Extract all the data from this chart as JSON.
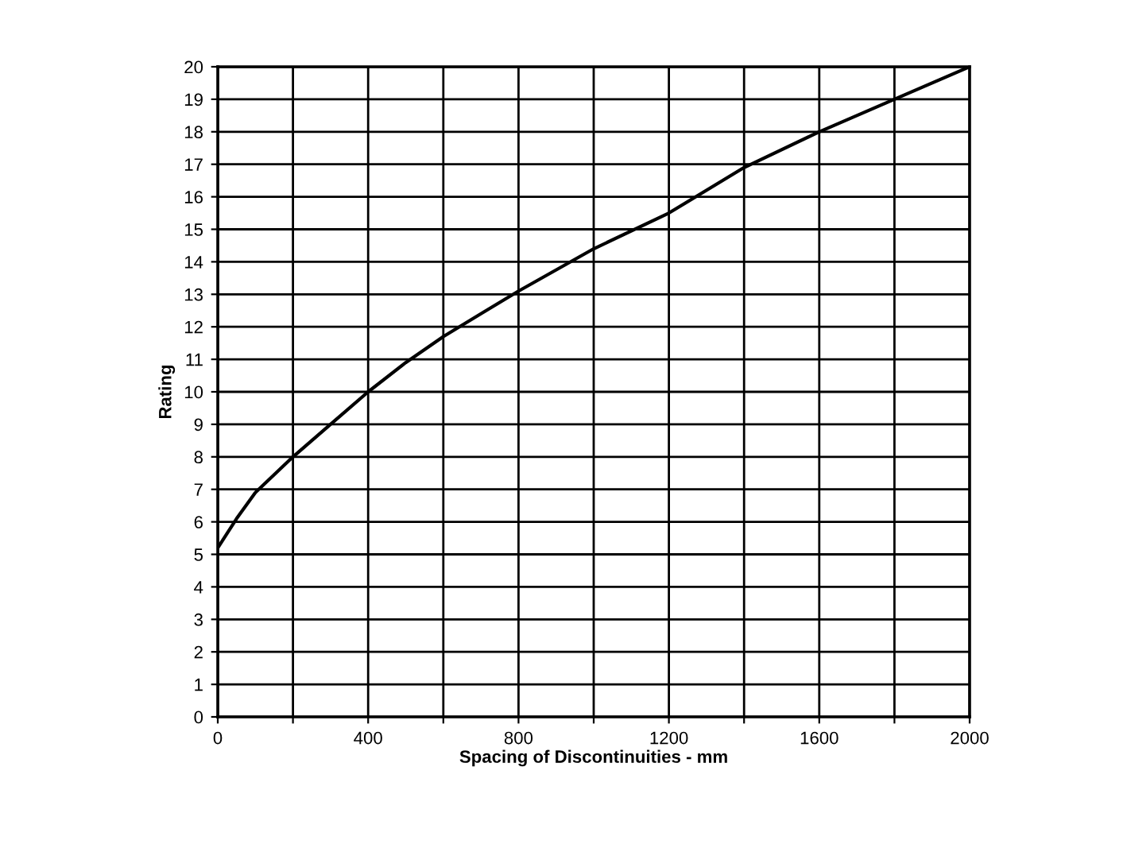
{
  "chart_data": {
    "type": "line",
    "xlabel": "Spacing of Discontinuities - mm",
    "ylabel": "Rating",
    "x": [
      0,
      50,
      100,
      200,
      300,
      400,
      500,
      600,
      700,
      800,
      1000,
      1200,
      1400,
      1600,
      1800,
      2000
    ],
    "series": [
      {
        "color": "#000000",
        "values": [
          5.2,
          6.1,
          6.9,
          8,
          9,
          10,
          10.9,
          11.7,
          12.4,
          13.1,
          14.4,
          15.5,
          16.9,
          18,
          19,
          20
        ]
      }
    ],
    "xlim": [
      0,
      2000
    ],
    "ylim": [
      0,
      20
    ],
    "xticks": [
      0,
      {
        "value": 200,
        "label": null
      },
      400,
      {
        "value": 600,
        "label": null
      },
      800,
      {
        "value": 1000,
        "label": null
      },
      1200,
      {
        "value": 1400,
        "label": null
      },
      1600,
      {
        "value": 1800,
        "label": null
      },
      2000
    ],
    "yticks": [
      0,
      1,
      2,
      3,
      4,
      5,
      6,
      7,
      8,
      9,
      10,
      11,
      12,
      13,
      14,
      15,
      16,
      17,
      18,
      19,
      20
    ],
    "grid": true,
    "marker": "none",
    "line_style": "solid",
    "legend": false
  }
}
